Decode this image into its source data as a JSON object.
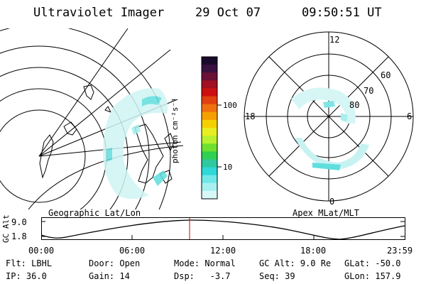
{
  "header": {
    "instrument": "Ultraviolet Imager",
    "date": "29 Oct 07",
    "time": "09:50:51 UT"
  },
  "colorbar": {
    "unit_label": "photon cm⁻²s⁻¹",
    "ticks": [
      "100",
      "10"
    ],
    "colors": [
      "#1a0a2a",
      "#3a1040",
      "#6a1035",
      "#a01020",
      "#cc1010",
      "#e24010",
      "#f07010",
      "#f5a000",
      "#f5d000",
      "#e8ee20",
      "#b8f030",
      "#70e030",
      "#30d050",
      "#30c8a0",
      "#30d8d8",
      "#70e8e8",
      "#a8f0f0",
      "#d8f8f8"
    ]
  },
  "left_map": {
    "label": "Geographic Lat/Lon"
  },
  "right_map": {
    "label": "Apex MLat/MLT",
    "mlt_labels": {
      "top": "12",
      "left": "18",
      "right": "6",
      "bottom": "0"
    },
    "lat_labels": [
      "60",
      "70",
      "80"
    ]
  },
  "altitude_plot": {
    "ylabel": "GC Alt",
    "y_ticks": [
      "9.0",
      "1.8"
    ],
    "x_ticks": [
      "00:00",
      "06:00",
      "12:00",
      "18:00",
      "23:59"
    ],
    "marker_color": "#cc0000"
  },
  "status": {
    "row1": [
      {
        "key": "Flt:",
        "value": "LBHL"
      },
      {
        "key": "Door:",
        "value": "Open"
      },
      {
        "key": "Mode:",
        "value": "Normal"
      },
      {
        "key": "GC Alt:",
        "value": "9.0 Re"
      },
      {
        "key": "GLat:",
        "value": "-50.0"
      }
    ],
    "row2": [
      {
        "key": "IP:",
        "value": "36.0"
      },
      {
        "key": "Gain:",
        "value": "14"
      },
      {
        "key": "Dsp:",
        "value": "-3.7"
      },
      {
        "key": "Seq:",
        "value": "39"
      },
      {
        "key": "GLon:",
        "value": "157.9"
      }
    ]
  }
}
